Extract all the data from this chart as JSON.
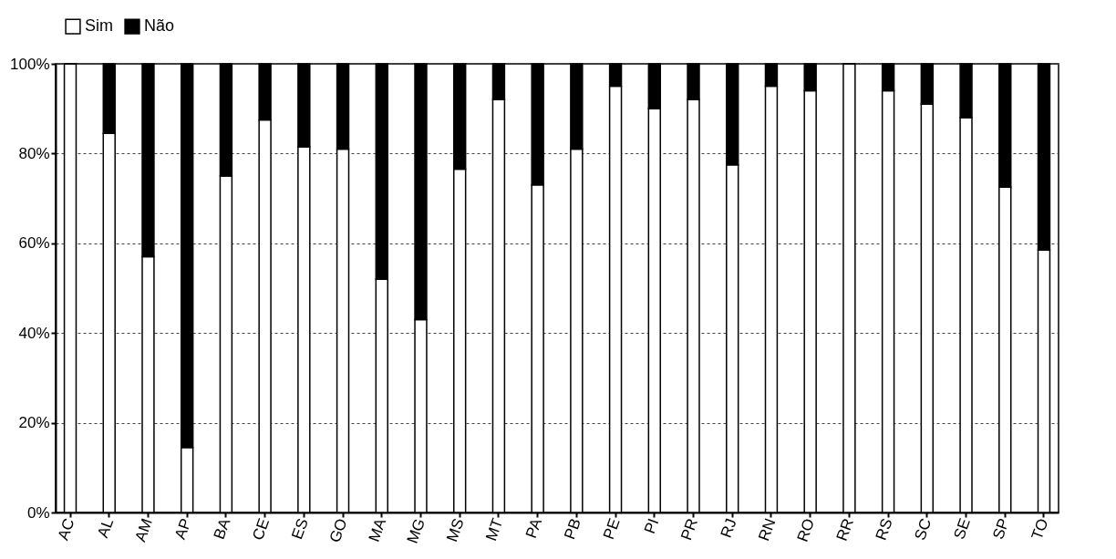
{
  "chart_data": {
    "type": "bar",
    "stacked": true,
    "categories": [
      "AC",
      "AL",
      "AM",
      "AP",
      "BA",
      "CE",
      "ES",
      "GO",
      "MA",
      "MG",
      "MS",
      "MT",
      "PA",
      "PB",
      "PE",
      "PI",
      "PR",
      "RJ",
      "RN",
      "RO",
      "RR",
      "RS",
      "SC",
      "SE",
      "SP",
      "TO"
    ],
    "series": [
      {
        "name": "Sim",
        "color": "#ffffff",
        "values": [
          100,
          84.5,
          57,
          14.5,
          75,
          87.5,
          81.5,
          81,
          52,
          43,
          76.5,
          92,
          73,
          81,
          95,
          90,
          92,
          77.5,
          95,
          94,
          100,
          94,
          91,
          88,
          72.5,
          58.5
        ]
      },
      {
        "name": "Não",
        "color": "#000000",
        "values": [
          0,
          15.5,
          43,
          85.5,
          25,
          12.5,
          18.5,
          19,
          48,
          57,
          23.5,
          8,
          27,
          19,
          5,
          10,
          8,
          22.5,
          5,
          6,
          0,
          6,
          9,
          12,
          27.5,
          41.5
        ]
      }
    ],
    "ylim": [
      0,
      100
    ],
    "yticks": [
      {
        "value": 0,
        "label": "0%"
      },
      {
        "value": 20,
        "label": "20%"
      },
      {
        "value": 40,
        "label": "40%"
      },
      {
        "value": 60,
        "label": "60%"
      },
      {
        "value": 80,
        "label": "80%"
      },
      {
        "value": 100,
        "label": "100%"
      }
    ],
    "grid": "y",
    "legend": "top"
  }
}
